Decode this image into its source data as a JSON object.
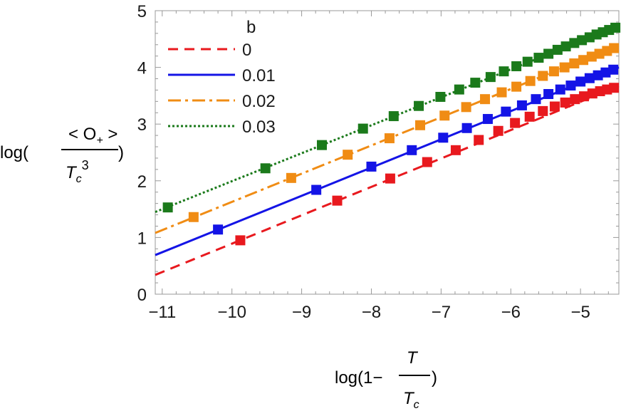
{
  "chart_data": {
    "type": "line",
    "xlabel": {
      "prefix": "log(1−",
      "numerator": "T",
      "denominator": "T",
      "denominator_sub": "c",
      "suffix": ")"
    },
    "ylabel": {
      "prefix": "log(",
      "numerator": "< O",
      "numerator_sub": "+",
      "numerator_end": " >",
      "denominator": "T",
      "denominator_sub": "c",
      "denominator_sup": "3",
      "suffix": ")"
    },
    "xlim": [
      -11.1,
      -4.45
    ],
    "ylim": [
      0,
      5
    ],
    "xticks": [
      -11,
      -10,
      -9,
      -8,
      -7,
      -6,
      -5
    ],
    "xtick_labels": [
      "−11",
      "−10",
      "−9",
      "−8",
      "−7",
      "−6",
      "−5"
    ],
    "yticks": [
      0,
      1,
      2,
      3,
      4,
      5
    ],
    "ytick_labels": [
      "0",
      "1",
      "2",
      "3",
      "4",
      "5"
    ],
    "legend": {
      "title": "b",
      "position": "top-left"
    },
    "series": [
      {
        "name": "0",
        "color": "#e8191e",
        "dash": "14 9",
        "marker": "square",
        "line_x": [
          -11.1,
          -4.45
        ],
        "line_y": [
          0.34,
          3.67
        ],
        "points_x": [
          -9.88,
          -8.49,
          -7.73,
          -7.2,
          -6.79,
          -6.46,
          -6.18,
          -5.94,
          -5.73,
          -5.54,
          -5.37,
          -5.22,
          -5.08,
          -4.95,
          -4.83,
          -4.72,
          -4.62,
          -4.52
        ],
        "points_y": [
          0.95,
          1.65,
          2.04,
          2.33,
          2.54,
          2.72,
          2.88,
          3.02,
          3.13,
          3.23,
          3.31,
          3.38,
          3.44,
          3.49,
          3.54,
          3.58,
          3.61,
          3.64
        ]
      },
      {
        "name": "0.01",
        "color": "#1414e6",
        "dash": "",
        "marker": "square",
        "line_x": [
          -11.1,
          -4.45
        ],
        "line_y": [
          0.69,
          4.0
        ],
        "points_x": [
          -10.2,
          -8.79,
          -8.0,
          -7.42,
          -6.97,
          -6.63,
          -6.33,
          -6.07,
          -5.84,
          -5.64,
          -5.46,
          -5.29,
          -5.14,
          -5.0,
          -4.87,
          -4.75,
          -4.64,
          -4.53
        ],
        "points_y": [
          1.14,
          1.84,
          2.25,
          2.54,
          2.76,
          2.93,
          3.09,
          3.22,
          3.33,
          3.44,
          3.53,
          3.61,
          3.68,
          3.75,
          3.81,
          3.86,
          3.91,
          3.96
        ]
      },
      {
        "name": "0.02",
        "color": "#f08c14",
        "dash": "18 6 4 6",
        "marker": "square",
        "line_x": [
          -11.1,
          -4.45
        ],
        "line_y": [
          1.08,
          4.39
        ],
        "points_x": [
          -10.55,
          -9.15,
          -8.34,
          -7.74,
          -7.3,
          -6.95,
          -6.64,
          -6.37,
          -6.13,
          -5.92,
          -5.72,
          -5.54,
          -5.38,
          -5.23,
          -5.09,
          -4.96,
          -4.84,
          -4.73,
          -4.62,
          -4.52
        ],
        "points_y": [
          1.36,
          2.05,
          2.46,
          2.75,
          2.98,
          3.15,
          3.3,
          3.44,
          3.56,
          3.66,
          3.76,
          3.85,
          3.93,
          4.0,
          4.07,
          4.13,
          4.19,
          4.24,
          4.29,
          4.34
        ]
      },
      {
        "name": "0.03",
        "color": "#1b7a1b",
        "dash": "3 3",
        "marker": "square",
        "line_x": [
          -11.1,
          -4.45
        ],
        "line_y": [
          1.45,
          4.73
        ],
        "points_x": [
          -10.92,
          -9.52,
          -8.71,
          -8.12,
          -7.68,
          -7.32,
          -7.01,
          -6.74,
          -6.51,
          -6.29,
          -6.1,
          -5.92,
          -5.76,
          -5.6,
          -5.46,
          -5.33,
          -5.21,
          -5.09,
          -4.98,
          -4.87,
          -4.77,
          -4.68,
          -4.59,
          -4.5
        ],
        "points_y": [
          1.53,
          2.22,
          2.63,
          2.92,
          3.14,
          3.32,
          3.48,
          3.61,
          3.73,
          3.83,
          3.93,
          4.02,
          4.1,
          4.17,
          4.24,
          4.31,
          4.37,
          4.43,
          4.48,
          4.53,
          4.58,
          4.62,
          4.66,
          4.7
        ]
      }
    ]
  }
}
